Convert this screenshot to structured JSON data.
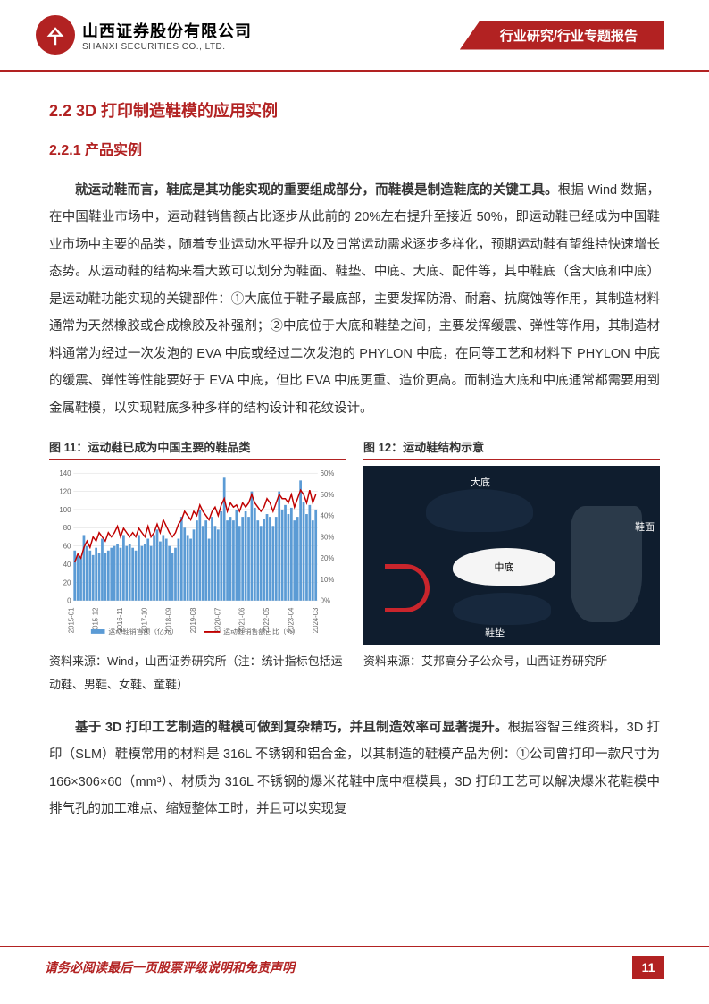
{
  "header": {
    "company_cn": "山西证券股份有限公司",
    "company_en": "SHANXI SECURITIES CO., LTD.",
    "logo_char": "㐃",
    "banner": "行业研究/行业专题报告"
  },
  "section": {
    "h2": "2.2  3D 打印制造鞋模的应用实例",
    "h3": "2.2.1  产品实例"
  },
  "para1_bold": "就运动鞋而言，鞋底是其功能实现的重要组成部分，而鞋模是制造鞋底的关键工具。",
  "para1_rest": "根据 Wind 数据，在中国鞋业市场中，运动鞋销售额占比逐步从此前的 20%左右提升至接近 50%，即运动鞋已经成为中国鞋业市场中主要的品类，随着专业运动水平提升以及日常运动需求逐步多样化，预期运动鞋有望维持快速增长态势。从运动鞋的结构来看大致可以划分为鞋面、鞋垫、中底、大底、配件等，其中鞋底（含大底和中底）是运动鞋功能实现的关键部件：①大底位于鞋子最底部，主要发挥防滑、耐磨、抗腐蚀等作用，其制造材料通常为天然橡胶或合成橡胶及补强剂；②中底位于大底和鞋垫之间，主要发挥缓震、弹性等作用，其制造材料通常为经过一次发泡的 EVA 中底或经过二次发泡的 PHYLON 中底，在同等工艺和材料下 PHYLON 中底的缓震、弹性等性能要好于 EVA 中底，但比 EVA 中底更重、造价更高。而制造大底和中底通常都需要用到金属鞋模，以实现鞋底多种多样的结构设计和花纹设计。",
  "fig11": {
    "title": "图 11：运动鞋已成为中国主要的鞋品类",
    "source": "资料来源：Wind，山西证券研究所（注：统计指标包括运动鞋、男鞋、女鞋、童鞋）",
    "chart": {
      "type": "bar+line",
      "y1_label_ticks": [
        "0",
        "20",
        "40",
        "60",
        "80",
        "100",
        "120",
        "140"
      ],
      "y2_label_ticks": [
        "0%",
        "10%",
        "20%",
        "30%",
        "40%",
        "50%",
        "60%"
      ],
      "x_labels": [
        "2015-01",
        "2015-12",
        "2016-11",
        "2017-10",
        "2018-09",
        "2019-08",
        "2020-07",
        "2021-06",
        "2022-05",
        "2023-04",
        "2024-03"
      ],
      "bar_color": "#5b9bd5",
      "line_color": "#c00000",
      "grid_color": "#d9d9d9",
      "legend_bar": "运动鞋销售额（亿元）",
      "legend_line": "运动鞋销售额占比（%）",
      "bars": [
        55,
        50,
        48,
        72,
        60,
        55,
        50,
        58,
        52,
        68,
        52,
        55,
        58,
        60,
        62,
        58,
        72,
        60,
        62,
        58,
        55,
        72,
        60,
        62,
        68,
        60,
        72,
        78,
        65,
        72,
        68,
        60,
        52,
        58,
        68,
        92,
        80,
        72,
        68,
        78,
        88,
        100,
        82,
        88,
        68,
        92,
        82,
        78,
        98,
        135,
        88,
        92,
        88,
        100,
        82,
        92,
        98,
        92,
        120,
        102,
        88,
        82,
        90,
        95,
        92,
        82,
        92,
        120,
        100,
        105,
        95,
        102,
        88,
        92,
        132,
        108,
        95,
        105,
        88,
        100
      ],
      "line": [
        18,
        22,
        20,
        25,
        28,
        25,
        30,
        28,
        32,
        30,
        28,
        32,
        30,
        32,
        35,
        30,
        34,
        32,
        30,
        32,
        30,
        34,
        32,
        30,
        35,
        30,
        32,
        36,
        32,
        38,
        35,
        32,
        30,
        32,
        36,
        38,
        42,
        40,
        38,
        42,
        40,
        45,
        42,
        40,
        38,
        42,
        44,
        40,
        45,
        48,
        42,
        46,
        44,
        45,
        42,
        46,
        44,
        46,
        50,
        46,
        44,
        42,
        44,
        48,
        46,
        42,
        46,
        50,
        48,
        48,
        46,
        50,
        44,
        48,
        52,
        50,
        46,
        52,
        46,
        50
      ]
    }
  },
  "fig12": {
    "title": "图 12：运动鞋结构示意",
    "source": "资料来源：艾邦高分子公众号，山西证券研究所",
    "labels": {
      "outsole": "大底",
      "midsole": "中底",
      "insole": "鞋垫",
      "upper": "鞋面"
    },
    "colors": {
      "bg": "#0f1d2e",
      "white_part": "#f5f5f5",
      "dark_part": "#2b3a4a",
      "red_part": "#c9252c",
      "navy_part": "#17283d"
    }
  },
  "para2_bold": "基于 3D 打印工艺制造的鞋模可做到复杂精巧，并且制造效率可显著提升。",
  "para2_rest": "根据容智三维资料，3D 打印（SLM）鞋模常用的材料是 316L 不锈钢和铝合金，以其制造的鞋模产品为例：①公司曾打印一款尺寸为 166×306×60（mm³）、材质为 316L 不锈钢的爆米花鞋中底中框模具，3D 打印工艺可以解决爆米花鞋模中排气孔的加工难点、缩短整体工时，并且可以实现复",
  "footer": {
    "disclaimer": "请务必阅读最后一页股票评级说明和免责声明",
    "page": "11"
  }
}
